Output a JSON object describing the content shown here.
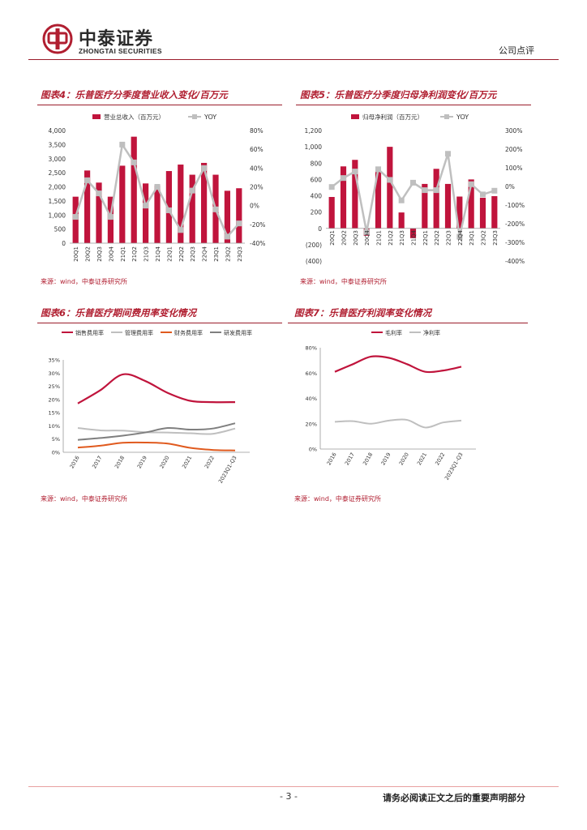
{
  "header": {
    "brand_cn": "中泰证券",
    "brand_en": "ZHONGTAI SECURITIES",
    "doc_type": "公司点评"
  },
  "source_text": "来源：wind，中泰证券研究所",
  "footer": {
    "page": "- 3 -",
    "notice": "请务必阅读正文之后的重要声明部分"
  },
  "colors": {
    "accent": "#b01e30",
    "bar": "#c0143c",
    "line_gray": "#bfbfbf",
    "orange": "#e05a1e",
    "dark_gray": "#7f7f7f"
  },
  "charts": [
    {
      "title": "图表4：乐普医疗分季度营业收入变化/百万元",
      "chart_data": {
        "type": "bar",
        "categories": [
          "20Q1",
          "20Q2",
          "20Q3",
          "20Q4",
          "21Q1",
          "21Q2",
          "21Q3",
          "21Q4",
          "22Q1",
          "22Q2",
          "22Q3",
          "22Q4",
          "23Q1",
          "23Q2",
          "23Q3"
        ],
        "series": [
          {
            "name": "营业总收入（百万元）",
            "axis": "left",
            "values": [
              1650,
              2580,
              2150,
              1650,
              2750,
              3780,
              2120,
              2050,
              2560,
              2790,
              2430,
              2850,
              2430,
              1860,
              1950
            ]
          },
          {
            "name": "YOY",
            "axis": "right",
            "type": "line",
            "values": [
              -12,
              27,
              13,
              -12,
              65,
              46,
              0,
              20,
              -5,
              -26,
              16,
              40,
              -4,
              -33,
              -19
            ]
          }
        ],
        "ylim_left": [
          0,
          4000
        ],
        "left_ticks": [
          "4,000",
          "3,500",
          "3,000",
          "2,500",
          "2,000",
          "1,500",
          "1,000",
          "500",
          "0"
        ],
        "ylim_right": [
          -40,
          80
        ],
        "right_ticks": [
          "80%",
          "60%",
          "40%",
          "20%",
          "0%",
          "-20%",
          "-40%"
        ],
        "legend": "top"
      }
    },
    {
      "title": "图表5：乐普医疗分季度归母净利润变化/百万元",
      "chart_data": {
        "type": "bar",
        "categories": [
          "20Q1",
          "20Q2",
          "20Q3",
          "20Q4",
          "21Q1",
          "21Q2",
          "21Q3",
          "21Q4",
          "22Q1",
          "22Q2",
          "22Q3",
          "22Q4",
          "23Q1",
          "23Q2",
          "23Q3"
        ],
        "series": [
          {
            "name": "归母净利润（百万元）",
            "axis": "left",
            "values": [
              385,
              760,
              840,
              -90,
              700,
              1000,
              195,
              -120,
              545,
              730,
              545,
              390,
              600,
              375,
              395
            ]
          },
          {
            "name": "YOY",
            "axis": "right",
            "type": "line",
            "values": [
              -3,
              45,
              80,
              -245,
              92,
              35,
              -75,
              20,
              -20,
              -20,
              175,
              -270,
              12,
              -43,
              -23
            ]
          }
        ],
        "ylim_left": [
          -400,
          1200
        ],
        "left_ticks": [
          "1,200",
          "1,000",
          "800",
          "600",
          "400",
          "200",
          "0",
          "(200)",
          "(400)"
        ],
        "ylim_right": [
          -400,
          300
        ],
        "right_ticks": [
          "300%",
          "200%",
          "100%",
          "0%",
          "-100%",
          "-200%",
          "-300%",
          "-400%"
        ],
        "legend": "top"
      }
    },
    {
      "title": "图表6：乐普医疗期间费用率变化情况",
      "chart_data": {
        "type": "line",
        "categories": [
          "2016",
          "2017",
          "2018",
          "2019",
          "2020",
          "2021",
          "2022",
          "2023Q1-Q3"
        ],
        "series": [
          {
            "name": "销售费用率",
            "values": [
              18.5,
              23.5,
              29.5,
              27.0,
              22.5,
              19.5,
              19.0,
              19.0
            ]
          },
          {
            "name": "管理费用率",
            "values": [
              9.2,
              8.3,
              8.2,
              7.6,
              7.5,
              7.2,
              7.0,
              9.0
            ]
          },
          {
            "name": "财务费用率",
            "values": [
              1.8,
              2.5,
              3.6,
              3.7,
              3.3,
              1.7,
              0.9,
              0.7
            ]
          },
          {
            "name": "研发费用率",
            "values": [
              4.7,
              5.4,
              6.3,
              7.5,
              9.2,
              8.6,
              9.0,
              11.0
            ]
          }
        ],
        "ylim": [
          0,
          35
        ],
        "ticks": [
          "35%",
          "30%",
          "25%",
          "20%",
          "15%",
          "10%",
          "5%",
          "0%"
        ],
        "legend": "top"
      }
    },
    {
      "title": "图表7：乐普医疗利润率变化情况",
      "chart_data": {
        "type": "line",
        "categories": [
          "2016",
          "2017",
          "2018",
          "2019",
          "2020",
          "2021",
          "2022",
          "2023Q1-Q3"
        ],
        "series": [
          {
            "name": "毛利率",
            "values": [
              61,
              67,
              73,
              72,
              67,
              61,
              62,
              65
            ]
          },
          {
            "name": "净利率",
            "values": [
              21.5,
              22,
              20,
              22.5,
              23,
              17,
              21,
              22.5
            ]
          }
        ],
        "ylim": [
          0,
          80
        ],
        "ticks": [
          "80%",
          "60%",
          "40%",
          "20%",
          "0%"
        ],
        "legend": "top"
      }
    }
  ]
}
